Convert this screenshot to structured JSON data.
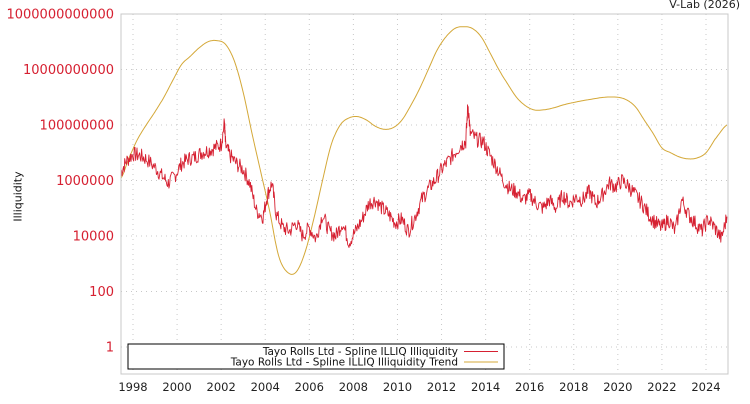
{
  "credit": "V-Lab (2026)",
  "chart_data": {
    "type": "line",
    "title": "",
    "xlabel": "",
    "ylabel": "Illiquidity",
    "yscale": "log",
    "ylim": [
      0.3,
      1000000000000
    ],
    "xlim": [
      1997.45,
      2024.95
    ],
    "grid": true,
    "legend_position": "bottom-left inside",
    "y_ticks": [
      {
        "value": 1000000000000,
        "label": "1000000000000"
      },
      {
        "value": 10000000000,
        "label": "10000000000"
      },
      {
        "value": 100000000,
        "label": "100000000"
      },
      {
        "value": 1000000,
        "label": "1000000"
      },
      {
        "value": 10000,
        "label": "10000"
      },
      {
        "value": 100,
        "label": "100"
      },
      {
        "value": 1,
        "label": "1"
      }
    ],
    "x_ticks": [
      "1998",
      "2000",
      "2002",
      "2004",
      "2006",
      "2008",
      "2010",
      "2012",
      "2014",
      "2016",
      "2018",
      "2020",
      "2022",
      "2024"
    ],
    "series": [
      {
        "name": "Tayo Rolls Ltd - Spline ILLIQ Illiquidity",
        "color": "#d62031",
        "x": [
          1997.45,
          1997.7,
          1998.0,
          1998.3,
          1998.6,
          1999.0,
          1999.3,
          1999.6,
          1999.9,
          2000.2,
          2000.5,
          2000.8,
          2001.1,
          2001.4,
          2001.7,
          2002.0,
          2002.15,
          2002.2,
          2002.4,
          2002.7,
          2003.0,
          2003.3,
          2003.6,
          2003.9,
          2004.1,
          2004.3,
          2004.5,
          2004.8,
          2005.1,
          2005.4,
          2005.7,
          2006.0,
          2006.3,
          2006.6,
          2006.9,
          2007.2,
          2007.5,
          2007.8,
          2008.1,
          2008.4,
          2008.7,
          2009.0,
          2009.3,
          2009.6,
          2009.9,
          2010.2,
          2010.5,
          2010.8,
          2011.1,
          2011.4,
          2011.7,
          2012.0,
          2012.3,
          2012.6,
          2012.9,
          2013.1,
          2013.2,
          2013.3,
          2013.6,
          2013.9,
          2014.2,
          2014.5,
          2014.8,
          2015.1,
          2015.4,
          2015.7,
          2016.0,
          2016.3,
          2016.6,
          2016.9,
          2017.2,
          2017.5,
          2017.8,
          2018.1,
          2018.4,
          2018.7,
          2019.0,
          2019.3,
          2019.6,
          2019.9,
          2020.2,
          2020.5,
          2020.8,
          2021.1,
          2021.4,
          2021.7,
          2022.0,
          2022.3,
          2022.6,
          2022.9,
          2023.2,
          2023.5,
          2023.8,
          2024.1,
          2024.4,
          2024.7,
          2024.95
        ],
        "values": [
          2000000,
          5000000,
          9000000,
          8000000,
          6000000,
          3000000,
          1500000,
          800000,
          1500000,
          4000000,
          6000000,
          7000000,
          10000000,
          12000000,
          15000000,
          20000000,
          120000000,
          18000000,
          8000000,
          4000000,
          2500000,
          800000,
          80000,
          50000,
          300000,
          800000,
          60000,
          20000,
          15000,
          30000,
          10000,
          20000,
          8000,
          60000,
          15000,
          10000,
          30000,
          6000,
          15000,
          40000,
          150000,
          200000,
          100000,
          60000,
          30000,
          40000,
          15000,
          50000,
          200000,
          500000,
          1000000,
          2500000,
          5000000,
          10000000,
          20000000,
          25000000,
          600000000,
          50000000,
          30000000,
          25000000,
          8000000,
          3000000,
          1000000,
          500000,
          400000,
          200000,
          300000,
          150000,
          100000,
          200000,
          100000,
          300000,
          150000,
          250000,
          200000,
          400000,
          150000,
          300000,
          800000,
          600000,
          1000000,
          600000,
          300000,
          150000,
          60000,
          30000,
          20000,
          40000,
          15000,
          200000,
          60000,
          30000,
          15000,
          40000,
          20000,
          8000,
          50000
        ]
      },
      {
        "name": "Tayo Rolls Ltd - Spline ILLIQ Illiquidity Trend",
        "color": "#d4a838",
        "x": [
          1997.45,
          1997.8,
          1998.2,
          1998.6,
          1999.0,
          1999.4,
          1999.8,
          2000.2,
          2000.6,
          2001.0,
          2001.4,
          2001.8,
          2002.2,
          2002.6,
          2003.0,
          2003.4,
          2003.8,
          2004.2,
          2004.6,
          2005.0,
          2005.4,
          2005.8,
          2006.2,
          2006.6,
          2007.0,
          2007.4,
          2007.8,
          2008.2,
          2008.6,
          2009.0,
          2009.4,
          2009.8,
          2010.2,
          2010.6,
          2011.0,
          2011.4,
          2011.8,
          2012.2,
          2012.6,
          2013.0,
          2013.4,
          2013.8,
          2014.2,
          2014.6,
          2015.0,
          2015.4,
          2015.8,
          2016.2,
          2016.6,
          2017.0,
          2017.6,
          2018.2,
          2018.8,
          2019.4,
          2020.0,
          2020.4,
          2020.8,
          2021.2,
          2021.6,
          2022.0,
          2022.4,
          2022.8,
          2023.2,
          2023.6,
          2024.0,
          2024.4,
          2024.95
        ],
        "values": [
          1200000,
          6000000,
          30000000,
          100000000,
          300000000,
          1000000000,
          4000000000,
          15000000000,
          30000000000,
          60000000000,
          100000000000,
          110000000000,
          80000000000,
          20000000000,
          1500000000,
          50000000,
          2000000,
          80000,
          2000,
          500,
          500,
          2500,
          40000,
          1000000,
          20000000,
          100000000,
          180000000,
          200000000,
          150000000,
          90000000,
          70000000,
          80000000,
          150000000,
          500000000,
          2000000000,
          10000000000,
          50000000000,
          150000000000,
          300000000000,
          350000000000,
          300000000000,
          150000000000,
          40000000000,
          10000000000,
          3000000000,
          1000000000,
          500000000,
          350000000,
          350000000,
          400000000,
          550000000,
          700000000,
          850000000,
          1000000000,
          1000000000,
          800000000,
          450000000,
          150000000,
          50000000,
          15000000,
          10000000,
          7000000,
          6000000,
          6500000,
          10000000,
          30000000,
          100000000
        ]
      }
    ]
  }
}
